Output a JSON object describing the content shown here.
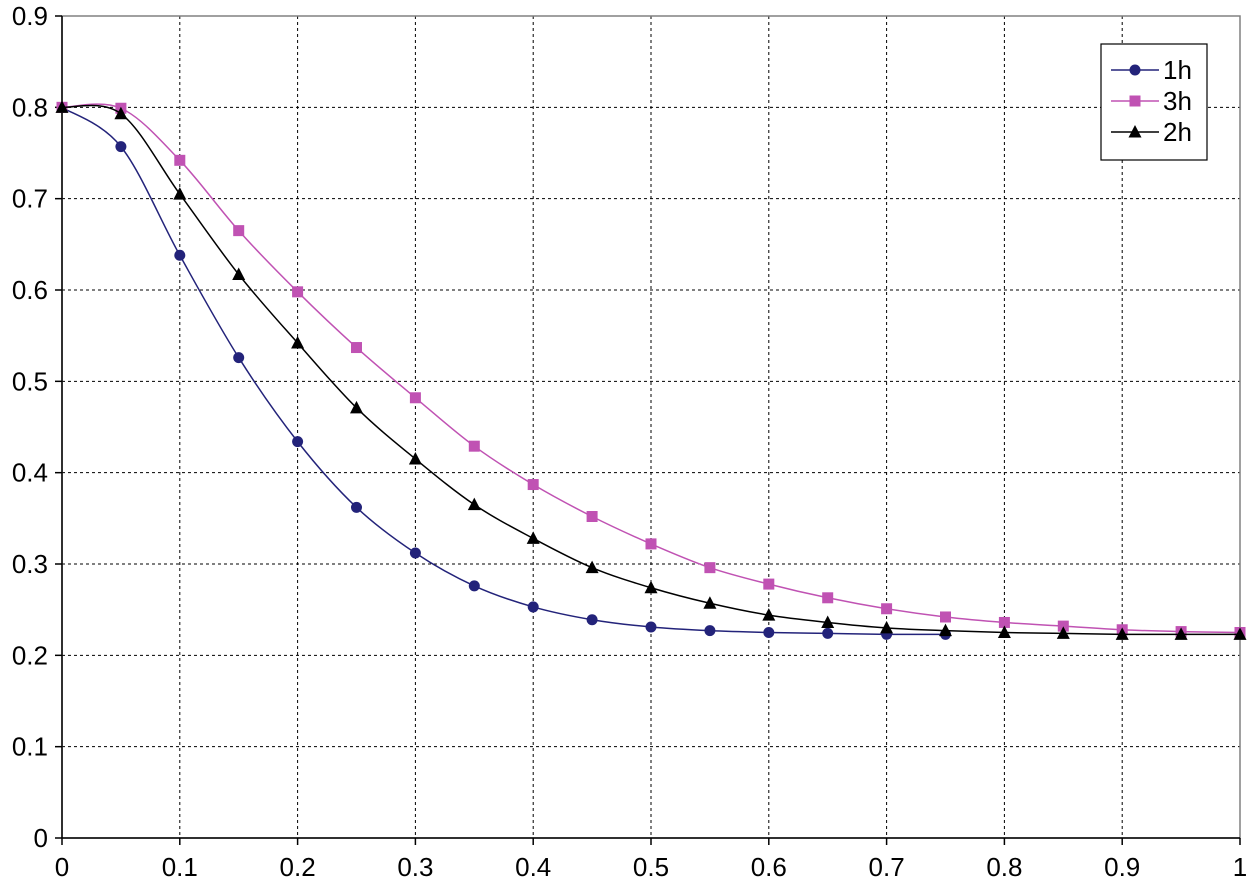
{
  "chart_data": {
    "type": "line",
    "title": "",
    "xlabel": "",
    "ylabel": "",
    "xlim": [
      0,
      1
    ],
    "ylim": [
      0,
      0.9
    ],
    "x_ticks": [
      "0",
      "0.1",
      "0.2",
      "0.3",
      "0.4",
      "0.5",
      "0.6",
      "0.7",
      "0.8",
      "0.9",
      "1"
    ],
    "y_ticks": [
      "0",
      "0.1",
      "0.2",
      "0.3",
      "0.4",
      "0.5",
      "0.6",
      "0.7",
      "0.8",
      "0.9"
    ],
    "grid": true,
    "legend_position": "top-right",
    "series": [
      {
        "name": "1h",
        "color": "#23237a",
        "marker": "circle",
        "x": [
          0,
          0.05,
          0.1,
          0.15,
          0.2,
          0.25,
          0.3,
          0.35,
          0.4,
          0.45,
          0.5,
          0.55,
          0.6,
          0.65,
          0.7,
          0.75
        ],
        "y": [
          0.8,
          0.757,
          0.638,
          0.526,
          0.434,
          0.362,
          0.312,
          0.276,
          0.253,
          0.239,
          0.231,
          0.227,
          0.225,
          0.224,
          0.223,
          0.223
        ]
      },
      {
        "name": "3h",
        "color": "#c052b3",
        "marker": "square",
        "x": [
          0,
          0.05,
          0.1,
          0.15,
          0.2,
          0.25,
          0.3,
          0.35,
          0.4,
          0.45,
          0.5,
          0.55,
          0.6,
          0.65,
          0.7,
          0.75,
          0.8,
          0.85,
          0.9,
          0.95,
          1
        ],
        "y": [
          0.8,
          0.799,
          0.742,
          0.665,
          0.598,
          0.537,
          0.482,
          0.429,
          0.387,
          0.352,
          0.322,
          0.296,
          0.278,
          0.263,
          0.251,
          0.242,
          0.236,
          0.232,
          0.228,
          0.226,
          0.225
        ]
      },
      {
        "name": "2h",
        "color": "#000000",
        "marker": "triangle",
        "x": [
          0,
          0.05,
          0.1,
          0.15,
          0.2,
          0.25,
          0.3,
          0.35,
          0.4,
          0.45,
          0.5,
          0.55,
          0.6,
          0.65,
          0.7,
          0.75,
          0.8,
          0.85,
          0.9,
          0.95,
          1
        ],
        "y": [
          0.8,
          0.793,
          0.705,
          0.617,
          0.542,
          0.471,
          0.415,
          0.365,
          0.328,
          0.296,
          0.274,
          0.257,
          0.244,
          0.236,
          0.23,
          0.227,
          0.225,
          0.224,
          0.223,
          0.223,
          0.223
        ]
      }
    ]
  }
}
